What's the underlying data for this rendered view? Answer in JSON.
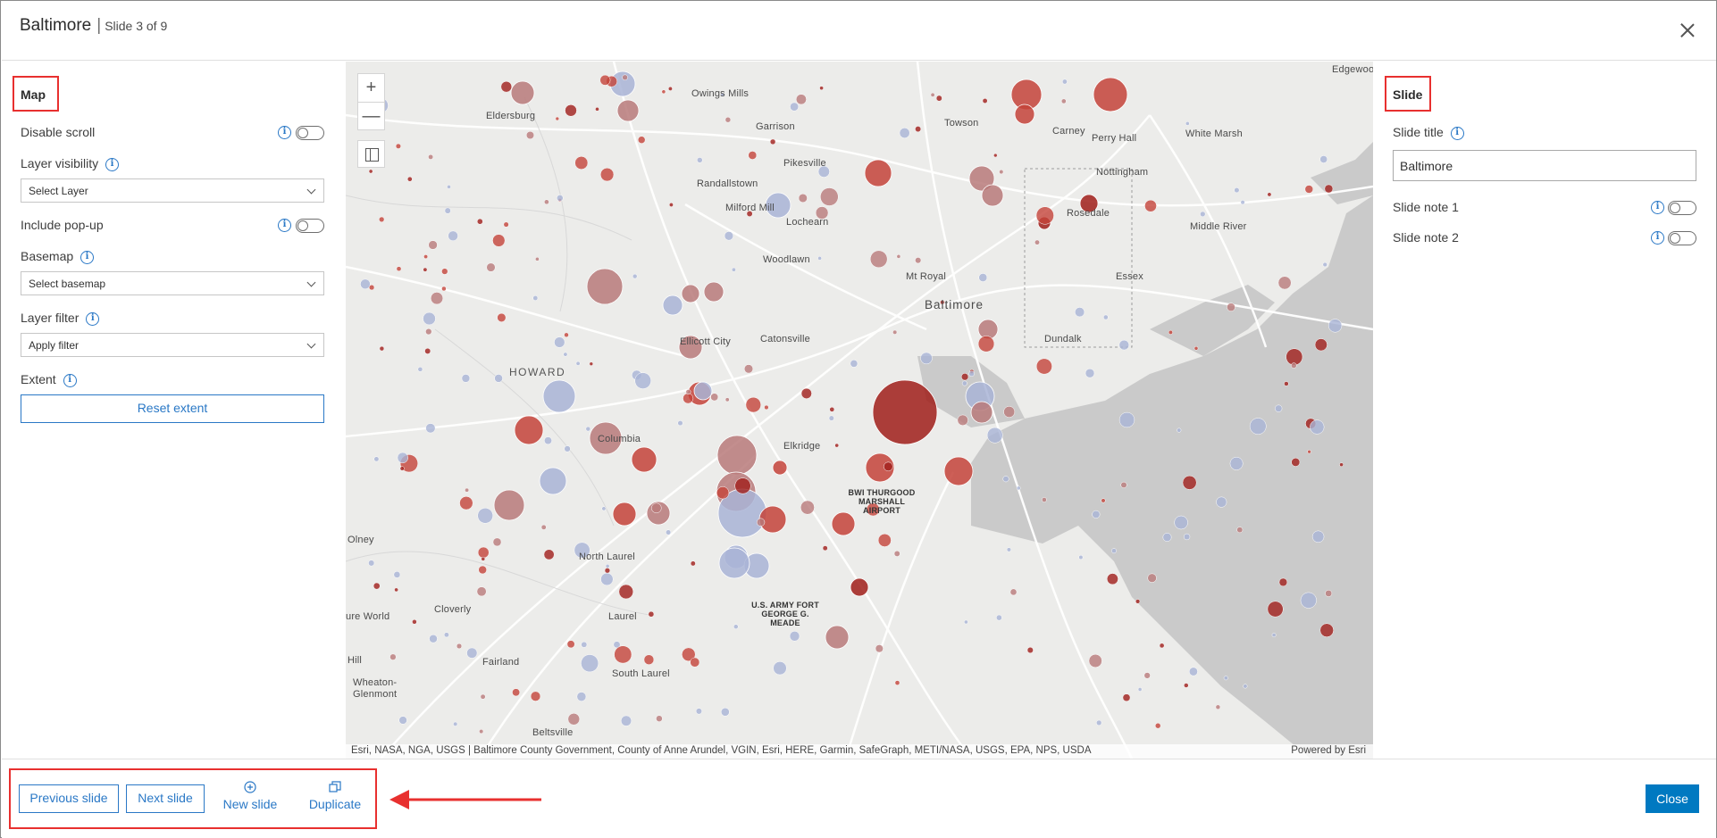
{
  "dialog": {
    "title": "Baltimore",
    "separator": "|",
    "subtitle": "Slide 3 of 9"
  },
  "left_panel": {
    "section_title": "Map",
    "disable_scroll": {
      "label": "Disable scroll",
      "on": false
    },
    "layer_visibility": {
      "label": "Layer visibility",
      "select": "Select Layer"
    },
    "include_popup": {
      "label": "Include pop-up",
      "on": false
    },
    "basemap": {
      "label": "Basemap",
      "select": "Select basemap"
    },
    "layer_filter": {
      "label": "Layer filter",
      "select": "Apply filter"
    },
    "extent": {
      "label": "Extent",
      "button": "Reset extent"
    }
  },
  "map": {
    "zoom_in": "+",
    "zoom_out": "—",
    "attribution": "Esri, NASA, NGA, USGS | Baltimore County Government, County of Anne Arundel, VGIN, Esri, HERE, Garmin, SafeGraph, METI/NASA, USGS, EPA, NPS, USDA",
    "powered_by": "Powered by Esri",
    "labels": {
      "edgewood": "Edgewoo",
      "owings_mills": "Owings Mills",
      "eldersburg": "Eldersburg",
      "garrison": "Garrison",
      "towson": "Towson",
      "carney": "Carney",
      "perry_hall": "Perry Hall",
      "white_marsh": "White Marsh",
      "pikesville": "Pikesville",
      "nottingham": "Nottingham",
      "randallstown": "Randallstown",
      "milford_mill": "Milford Mill",
      "rosedale": "Rosedale",
      "lochearn": "Lochearn",
      "middle_river": "Middle River",
      "woodlawn": "Woodlawn",
      "mt_royal": "Mt Royal",
      "essex": "Essex",
      "baltimore": "Baltimore",
      "ellicott_city": "Ellicott City",
      "catonsville": "Catonsville",
      "dundalk": "Dundalk",
      "howard": "HOWARD",
      "columbia": "Columbia",
      "elkridge": "Elkridge",
      "bwi": "BWI THURGOOD MARSHALL AIRPORT",
      "olney": "Olney",
      "north_laurel": "North Laurel",
      "fort_meade": "U.S. ARMY FORT GEORGE G. MEADE",
      "cloverly": "Cloverly",
      "laurel": "Laurel",
      "ure_world": "ure World",
      "fairland": "Fairland",
      "hill": "Hill",
      "south_laurel": "South Laurel",
      "wheaton_glenmont": "Wheaton-Glenmont",
      "beltsville": "Beltsville"
    },
    "colors": {
      "land": "#ececea",
      "water": "#c9c9c9",
      "red_dark": "#a01e1a",
      "red_mid": "#c4433a",
      "red_light": "#b97a7a",
      "blue": "#a9b4d6"
    }
  },
  "right_panel": {
    "section_title": "Slide",
    "slide_title": {
      "label": "Slide title",
      "value": "Baltimore"
    },
    "slide_note_1": {
      "label": "Slide note 1",
      "on": false
    },
    "slide_note_2": {
      "label": "Slide note 2",
      "on": false
    }
  },
  "footer": {
    "previous": "Previous slide",
    "next": "Next slide",
    "new_slide": "New slide",
    "duplicate": "Duplicate",
    "close": "Close"
  }
}
